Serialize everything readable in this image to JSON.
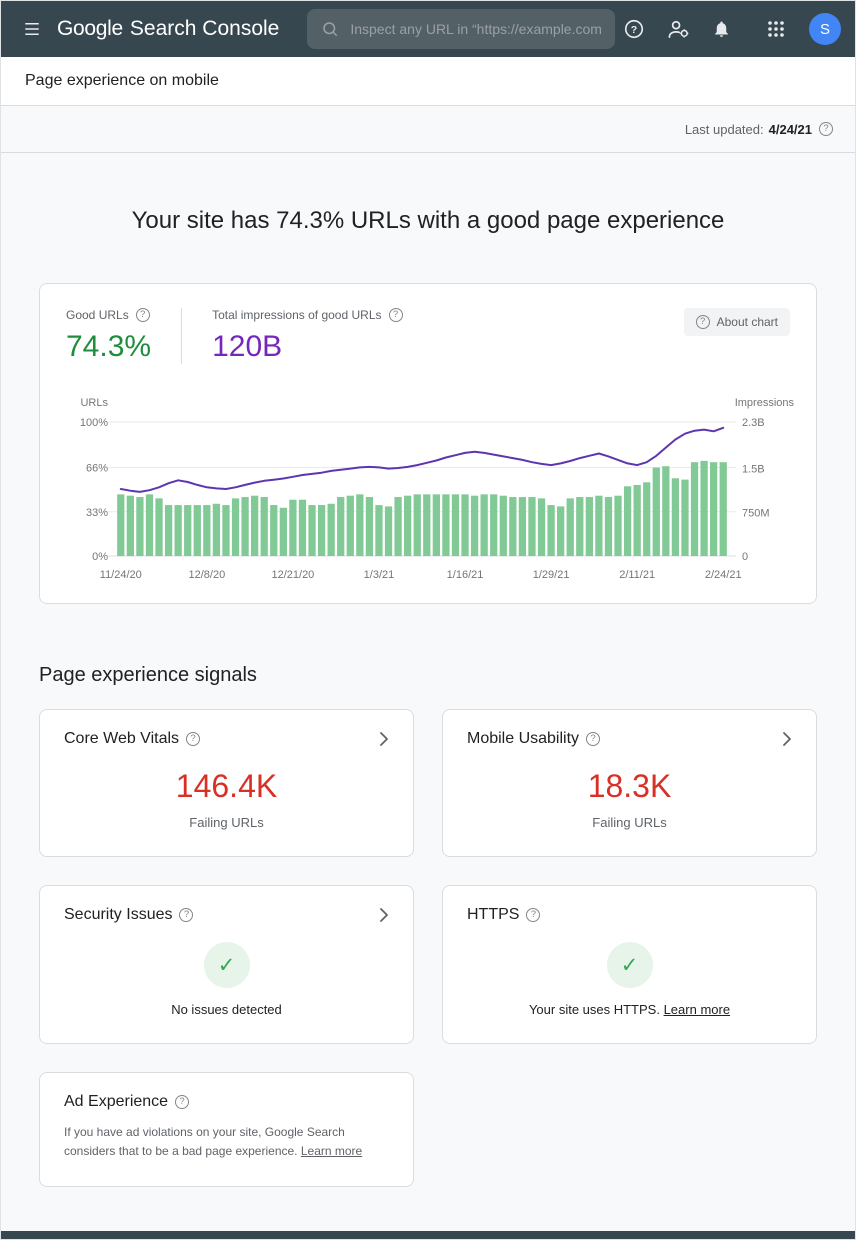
{
  "header": {
    "logo_google": "Google",
    "logo_product": "Search Console",
    "search_placeholder": "Inspect any URL in “https://example.com”",
    "avatar_initial": "S"
  },
  "breadcrumb": {
    "title": "Page experience on mobile"
  },
  "status_bar": {
    "last_updated_label": "Last updated:",
    "last_updated_value": "4/24/21"
  },
  "hero": {
    "title": "Your site has 74.3% URLs with a good page experience"
  },
  "summary": {
    "good_urls_label": "Good URLs",
    "good_urls_value": "74.3%",
    "impressions_label": "Total impressions of good URLs",
    "impressions_value": "120B",
    "about_chart_label": "About chart"
  },
  "chart_data": {
    "type": "bar",
    "legend_position": "none",
    "grid": true,
    "left_axis": {
      "label": "URLs",
      "ticks": [
        "100%",
        "66%",
        "33%",
        "0%"
      ],
      "tick_values": [
        100,
        66,
        33,
        0
      ],
      "min": 0,
      "max": 100
    },
    "right_axis": {
      "label": "Impressions",
      "ticks": [
        "2.3B",
        "1.5B",
        "750M",
        "0"
      ],
      "tick_values": [
        2.3,
        1.5,
        0.75,
        0
      ],
      "min": 0,
      "max": 2.3
    },
    "x_tick_labels": [
      "11/24/20",
      "12/8/20",
      "12/21/20",
      "1/3/21",
      "1/16/21",
      "1/29/21",
      "2/11/21",
      "2/24/21"
    ],
    "x_tick_indices": [
      0,
      9,
      18,
      27,
      36,
      45,
      54,
      63
    ],
    "series": [
      {
        "name": "Good URLs (%)",
        "kind": "bar",
        "axis": "left",
        "color": "#81c995",
        "values": [
          46,
          45,
          44,
          46,
          43,
          38,
          38,
          38,
          38,
          38,
          39,
          38,
          43,
          44,
          45,
          44,
          38,
          36,
          42,
          42,
          38,
          38,
          39,
          44,
          45,
          46,
          44,
          38,
          37,
          44,
          45,
          46,
          46,
          46,
          46,
          46,
          46,
          45,
          46,
          46,
          45,
          44,
          44,
          44,
          43,
          38,
          37,
          43,
          44,
          44,
          45,
          44,
          45,
          52,
          53,
          55,
          66,
          67,
          58,
          57,
          70,
          71,
          70,
          70
        ]
      },
      {
        "name": "Impressions (B)",
        "kind": "line",
        "axis": "right",
        "color": "#5e35b1",
        "values": [
          1.15,
          1.12,
          1.1,
          1.13,
          1.18,
          1.25,
          1.3,
          1.27,
          1.22,
          1.18,
          1.16,
          1.15,
          1.18,
          1.22,
          1.26,
          1.29,
          1.31,
          1.33,
          1.36,
          1.39,
          1.41,
          1.43,
          1.46,
          1.48,
          1.5,
          1.52,
          1.53,
          1.52,
          1.5,
          1.51,
          1.53,
          1.56,
          1.6,
          1.64,
          1.69,
          1.73,
          1.77,
          1.79,
          1.77,
          1.74,
          1.71,
          1.68,
          1.65,
          1.61,
          1.58,
          1.56,
          1.59,
          1.63,
          1.68,
          1.72,
          1.76,
          1.71,
          1.65,
          1.59,
          1.56,
          1.61,
          1.72,
          1.86,
          2.0,
          2.1,
          2.15,
          2.17,
          2.14,
          2.2
        ]
      }
    ]
  },
  "signals": {
    "heading": "Page experience signals",
    "cards": [
      {
        "title": "Core Web Vitals",
        "value": "146.4K",
        "caption": "Failing URLs"
      },
      {
        "title": "Mobile Usability",
        "value": "18.3K",
        "caption": "Failing URLs"
      },
      {
        "title": "Security Issues",
        "status": "No issues detected"
      },
      {
        "title": "HTTPS",
        "status": "Your site uses HTTPS.",
        "link": "Learn more"
      },
      {
        "title": "Ad Experience",
        "body": "If you have ad violations on your site, Google Search considers that to be a bad page experience.",
        "link": "Learn more"
      }
    ]
  },
  "icons": {
    "info": "?",
    "check": "✓"
  },
  "colors": {
    "header_bg": "#37474f",
    "bar_green": "#81c995",
    "line_purple": "#5e35b1",
    "good_green": "#1e8e3e",
    "impressions_purple": "#7627bb",
    "failing_red": "#d93025",
    "check_green": "#34a853",
    "check_bg": "#e6f4ea",
    "avatar_blue": "#4285f4"
  }
}
